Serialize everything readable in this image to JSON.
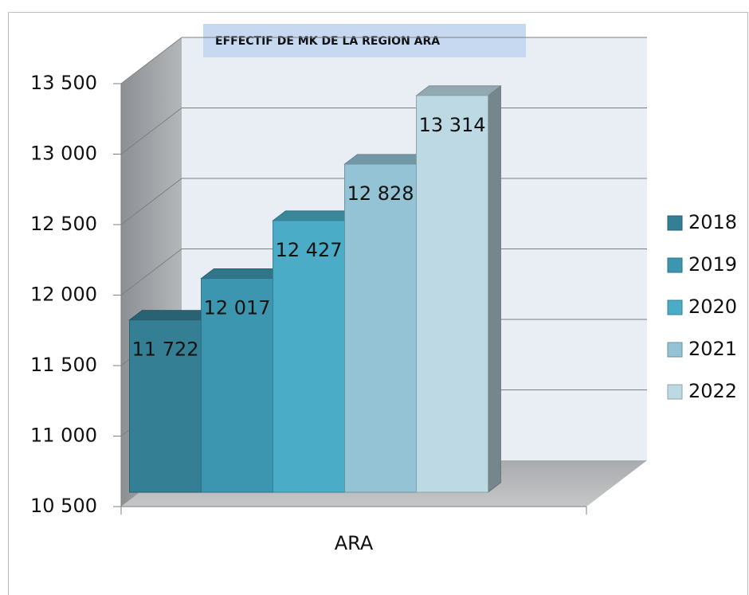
{
  "chart_data": {
    "type": "bar3d",
    "title": "EFFECTIF DE MK DE LA REGION ARA",
    "categories": [
      "ARA"
    ],
    "series": [
      {
        "name": "2018",
        "color": "#357f94",
        "values": [
          11722
        ],
        "value_labels": [
          "11 722"
        ]
      },
      {
        "name": "2019",
        "color": "#3d96b0",
        "values": [
          12017
        ],
        "value_labels": [
          "12 017"
        ]
      },
      {
        "name": "2020",
        "color": "#4aacc6",
        "values": [
          12427
        ],
        "value_labels": [
          "12 427"
        ]
      },
      {
        "name": "2021",
        "color": "#93c3d4",
        "values": [
          12828
        ],
        "value_labels": [
          "12 828"
        ]
      },
      {
        "name": "2022",
        "color": "#bdd9e4",
        "values": [
          13314
        ],
        "value_labels": [
          "13 314"
        ]
      }
    ],
    "ylim": [
      10500,
      13500
    ],
    "yticks": [
      {
        "value": 10500,
        "label": "10 500"
      },
      {
        "value": 11000,
        "label": "11 000"
      },
      {
        "value": 11500,
        "label": "11 500"
      },
      {
        "value": 12000,
        "label": "12 000"
      },
      {
        "value": 12500,
        "label": "12 500"
      },
      {
        "value": 13000,
        "label": "13 000"
      },
      {
        "value": 13500,
        "label": "13 500"
      }
    ],
    "grid": true,
    "legend": "right"
  }
}
